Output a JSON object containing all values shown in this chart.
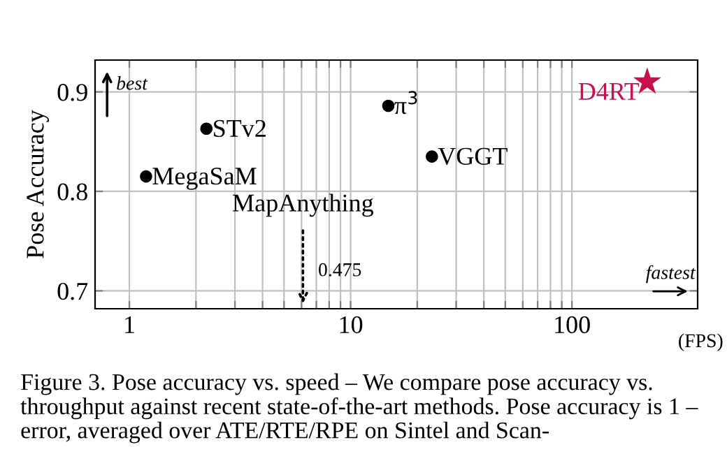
{
  "chart_data": {
    "type": "scatter",
    "xlabel": "(FPS)",
    "ylabel": "Pose Accuracy",
    "log": "x",
    "xlim": [
      0.7,
      370
    ],
    "ylim": [
      0.682,
      0.932
    ],
    "xticks": [
      1,
      {
        "value": 2,
        "label": null
      },
      {
        "value": 3,
        "label": null
      },
      {
        "value": 4,
        "label": null
      },
      {
        "value": 5,
        "label": null
      },
      {
        "value": 6,
        "label": null
      },
      {
        "value": 7,
        "label": null
      },
      {
        "value": 8,
        "label": null
      },
      {
        "value": 9,
        "label": null
      },
      10,
      {
        "value": 20,
        "label": null
      },
      {
        "value": 30,
        "label": null
      },
      {
        "value": 40,
        "label": null
      },
      {
        "value": 50,
        "label": null
      },
      {
        "value": 60,
        "label": null
      },
      {
        "value": 70,
        "label": null
      },
      {
        "value": 80,
        "label": null
      },
      {
        "value": 90,
        "label": null
      },
      100
    ],
    "yticks": [
      0.7,
      0.8,
      0.9
    ],
    "grid": true,
    "series": [
      {
        "name": "MegaSaM",
        "color": "#000000",
        "marker": "circle",
        "x": [
          1.19
        ],
        "values": [
          0.815
        ]
      },
      {
        "name": "STv2",
        "color": "#000000",
        "marker": "circle",
        "x": [
          2.23
        ],
        "values": [
          0.863
        ]
      },
      {
        "name": "π$^{3}$",
        "color": "#000000",
        "marker": "circle",
        "x": [
          14.8
        ],
        "values": [
          0.886
        ]
      },
      {
        "name": "VGGT",
        "color": "#000000",
        "marker": "circle",
        "x": [
          23.3
        ],
        "values": [
          0.835
        ]
      },
      {
        "name": "D4RT",
        "color": "#c8104e",
        "marker": "star",
        "x": [
          219
        ],
        "values": [
          0.91
        ]
      }
    ],
    "annotations": [
      "MapAnything",
      "0.475",
      "best",
      "fastest",
      "Figure 3. Pose accuracy vs. speed – We compare pose accuracy vs. throughput against recent state-of-the-art methods. Pose accuracy is 1 – error, averaged over ATE/RTE/RPE on Sintel and Scan-"
    ]
  }
}
